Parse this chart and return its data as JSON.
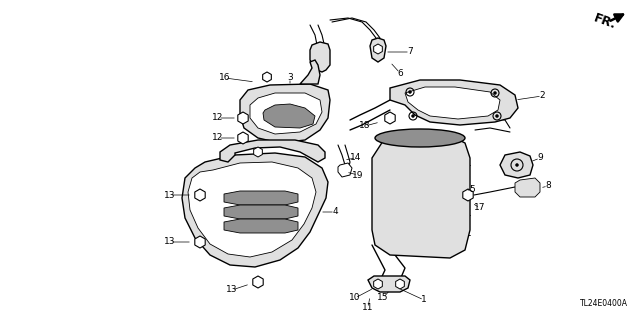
{
  "bg_color": "#ffffff",
  "diagram_code": "TL24E0400A",
  "fr_label": "FR.",
  "line_color": "#000000",
  "text_color": "#000000",
  "gray_fill": "#c8c8c8",
  "light_gray": "#e0e0e0",
  "dark_gray": "#909090",
  "font_size_label": 6.5,
  "font_size_code": 5.5,
  "font_size_fr": 9,
  "figsize": [
    6.4,
    3.19
  ],
  "dpi": 100
}
